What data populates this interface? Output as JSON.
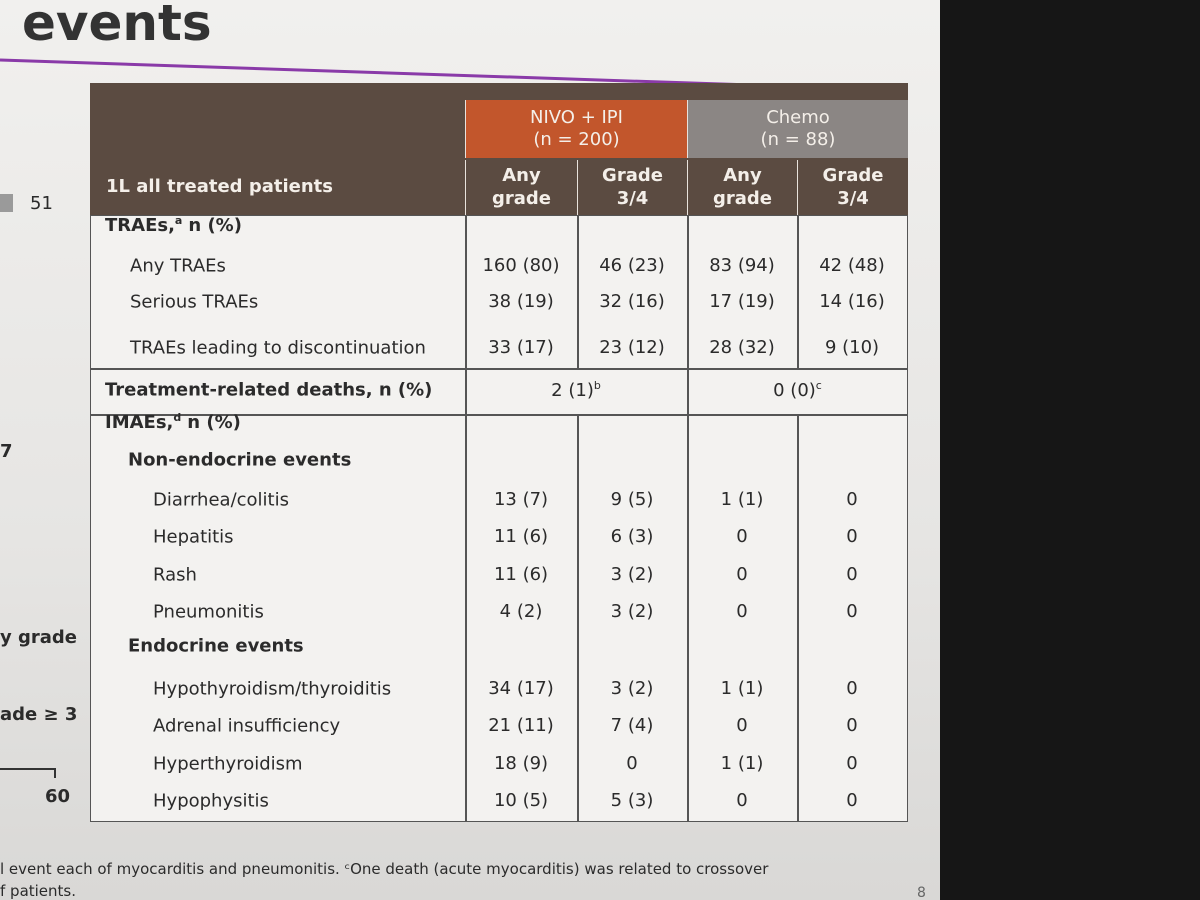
{
  "header": {
    "title": "events",
    "page_number": "8"
  },
  "left_fragments": [
    "51",
    "7",
    "y grade",
    "ade ≥ 3",
    "60"
  ],
  "table": {
    "corner_label": "1L all treated patients",
    "groups": [
      {
        "name": "NIVO + IPI",
        "n": "(n = 200)",
        "color": "#c2562c"
      },
      {
        "name": "Chemo",
        "n": "(n = 88)",
        "color": "#8b8684"
      }
    ],
    "subheaders": [
      [
        "Any",
        "grade"
      ],
      [
        "Grade",
        "3/4"
      ],
      [
        "Any",
        "grade"
      ],
      [
        "Grade",
        "3/4"
      ]
    ],
    "rows": [
      {
        "kind": "section",
        "label": "TRAEs,",
        "sup": "a",
        "suffix": "n (%)"
      },
      {
        "kind": "item",
        "label": "Any TRAEs",
        "values": [
          "160 (80)",
          "46 (23)",
          "83 (94)",
          "42 (48)"
        ]
      },
      {
        "kind": "item",
        "label": "Serious TRAEs",
        "values": [
          "38 (19)",
          "32 (16)",
          "17 (19)",
          "14 (16)"
        ]
      },
      {
        "kind": "item",
        "label": "TRAEs leading to discontinuation",
        "values": [
          "33 (17)",
          "23 (12)",
          "28 (32)",
          "9 (10)"
        ]
      },
      {
        "kind": "merged",
        "label": "Treatment-related deaths, n (%)",
        "values": [
          {
            "text": "2 (1)",
            "sup": "b"
          },
          {
            "text": "0 (0)",
            "sup": "c"
          }
        ]
      },
      {
        "kind": "section",
        "label": "IMAEs,",
        "sup": "d",
        "suffix": "n (%)"
      },
      {
        "kind": "subsection",
        "label": "Non-endocrine events"
      },
      {
        "kind": "item",
        "label": "Diarrhea/colitis",
        "values": [
          "13 (7)",
          "9 (5)",
          "1 (1)",
          "0"
        ]
      },
      {
        "kind": "item",
        "label": "Hepatitis",
        "values": [
          "11 (6)",
          "6 (3)",
          "0",
          "0"
        ]
      },
      {
        "kind": "item",
        "label": "Rash",
        "values": [
          "11 (6)",
          "3 (2)",
          "0",
          "0"
        ]
      },
      {
        "kind": "item",
        "label": "Pneumonitis",
        "values": [
          "4 (2)",
          "3 (2)",
          "0",
          "0"
        ]
      },
      {
        "kind": "subsection",
        "label": "Endocrine events"
      },
      {
        "kind": "item",
        "label": "Hypothyroidism/thyroiditis",
        "values": [
          "34 (17)",
          "3 (2)",
          "1 (1)",
          "0"
        ]
      },
      {
        "kind": "item",
        "label": "Adrenal insufficiency",
        "values": [
          "21 (11)",
          "7 (4)",
          "0",
          "0"
        ]
      },
      {
        "kind": "item",
        "label": "Hyperthyroidism",
        "values": [
          "18 (9)",
          "0",
          "1 (1)",
          "0"
        ]
      },
      {
        "kind": "item",
        "label": "Hypophysitis",
        "values": [
          "10 (5)",
          "5 (3)",
          "0",
          "0"
        ]
      }
    ]
  },
  "footnotes": [
    "l event each of myocarditis and pneumonitis. ᶜOne death (acute myocarditis) was related to crossover",
    "f patients."
  ]
}
